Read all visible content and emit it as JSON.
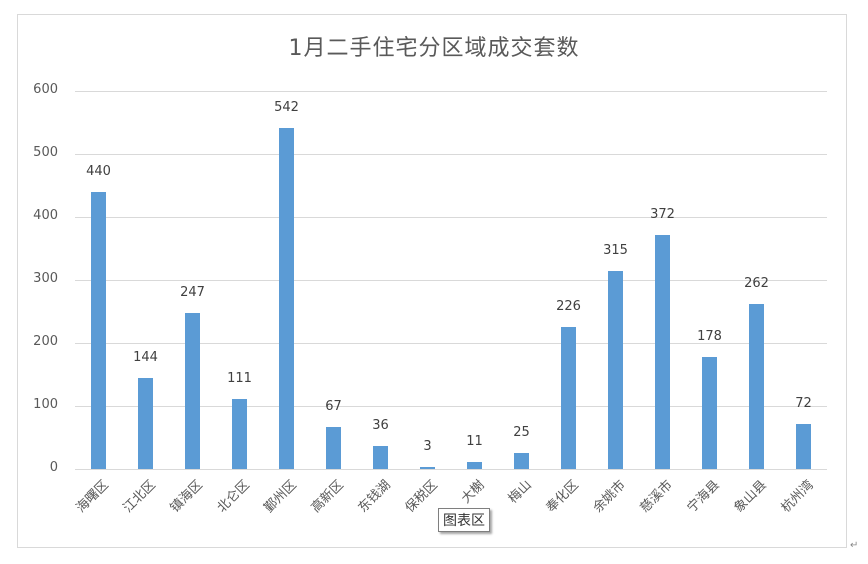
{
  "chart_data": {
    "type": "bar",
    "title": "1月二手住宅分区域成交套数",
    "categories": [
      "海曙区",
      "江北区",
      "镇海区",
      "北仑区",
      "鄞州区",
      "高新区",
      "东钱湖",
      "保税区",
      "大榭",
      "梅山",
      "奉化区",
      "余姚市",
      "慈溪市",
      "宁海县",
      "象山县",
      "杭州湾"
    ],
    "values": [
      440,
      144,
      247,
      111,
      542,
      67,
      36,
      3,
      11,
      25,
      226,
      315,
      372,
      178,
      262,
      72
    ],
    "xlabel": "",
    "ylabel": "",
    "ylim": [
      0,
      600
    ],
    "yticks": [
      0,
      100,
      200,
      300,
      400,
      500,
      600
    ],
    "grid": true,
    "legend": null,
    "data_labels": true,
    "bar_color": "#5b9bd5"
  },
  "tooltip": {
    "text": "图表区"
  },
  "paragraph_mark": "↵"
}
